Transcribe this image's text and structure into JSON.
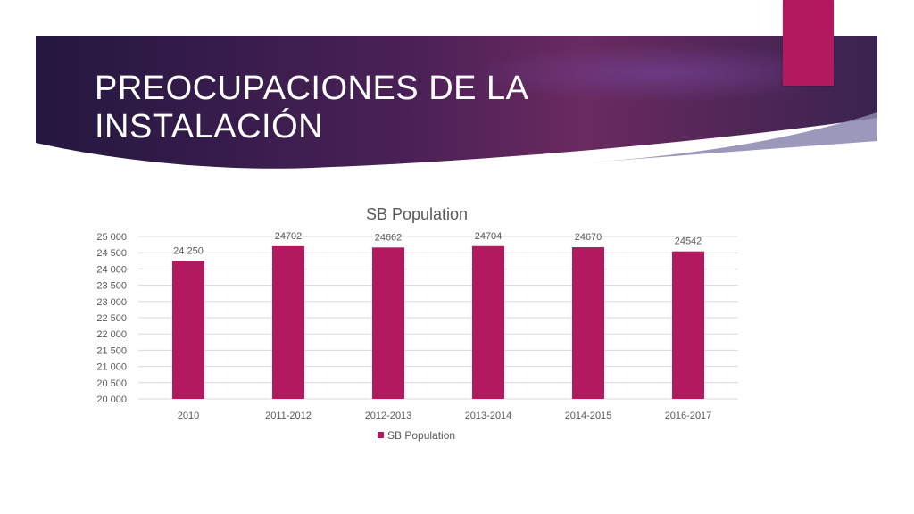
{
  "slide": {
    "title": "PREOCUPACIONES DE LA INSTALACIÓN",
    "colors": {
      "band_dark": "#2a1848",
      "band_mid": "#5a2a63",
      "accent": "#b3195f"
    }
  },
  "chart_data": {
    "type": "bar",
    "title": "SB Population",
    "categories": [
      "2010",
      "2011-2012",
      "2012-2013",
      "2013-2014",
      "2014-2015",
      "2016-2017"
    ],
    "series": [
      {
        "name": "SB Population",
        "values": [
          24250,
          24702,
          24662,
          24704,
          24670,
          24542
        ],
        "data_labels": [
          "24 250",
          "24702",
          "24662",
          "24704",
          "24670",
          "24542"
        ],
        "color": "#b3195f"
      }
    ],
    "ylim": [
      20000,
      25000
    ],
    "yticks": [
      20000,
      20500,
      21000,
      21500,
      22000,
      22500,
      23000,
      23500,
      24000,
      24500,
      25000
    ],
    "ytick_labels": [
      "20 000",
      "20 500",
      "21 000",
      "21 500",
      "22 000",
      "22 500",
      "23 000",
      "23 500",
      "24 000",
      "24 500",
      "25 000"
    ],
    "grid": true,
    "legend_position": "bottom"
  }
}
